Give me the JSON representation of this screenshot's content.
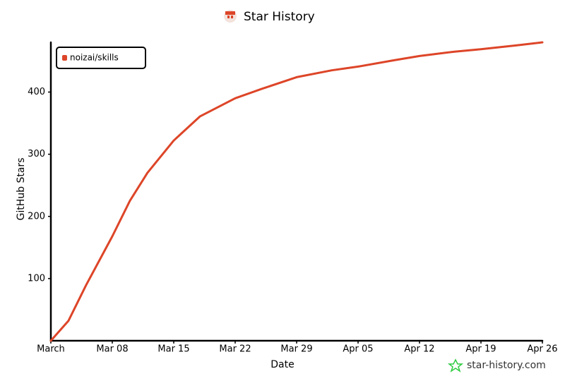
{
  "chart_data": {
    "type": "line",
    "title": "Star History",
    "x_label": "Date",
    "y_label": "GitHub Stars",
    "watermark": "star-history.com",
    "x": [
      "Mar 01",
      "Mar 03",
      "Mar 05",
      "Mar 08",
      "Mar 10",
      "Mar 12",
      "Mar 15",
      "Mar 18",
      "Mar 22",
      "Mar 25",
      "Mar 29",
      "Apr 02",
      "Apr 05",
      "Apr 09",
      "Apr 12",
      "Apr 16",
      "Apr 19",
      "Apr 23",
      "Apr 26"
    ],
    "series": [
      {
        "name": "noizai/skills",
        "color": "#dd4528",
        "values": [
          0,
          32,
          89,
          168,
          225,
          270,
          322,
          361,
          390,
          405,
          424,
          435,
          441,
          451,
          458,
          465,
          469,
          475,
          480
        ]
      }
    ],
    "xlim": [
      "Mar 01",
      "Apr 26"
    ],
    "xticks": [
      {
        "value": "Mar 01",
        "label": "March"
      },
      "Mar 08",
      "Mar 15",
      "Mar 22",
      "Mar 29",
      "Apr 05",
      "Apr 12",
      "Apr 19",
      "Apr 26"
    ],
    "ylim": [
      0,
      480
    ],
    "yticks": [
      100,
      200,
      300,
      400
    ],
    "legend": "top-left"
  }
}
